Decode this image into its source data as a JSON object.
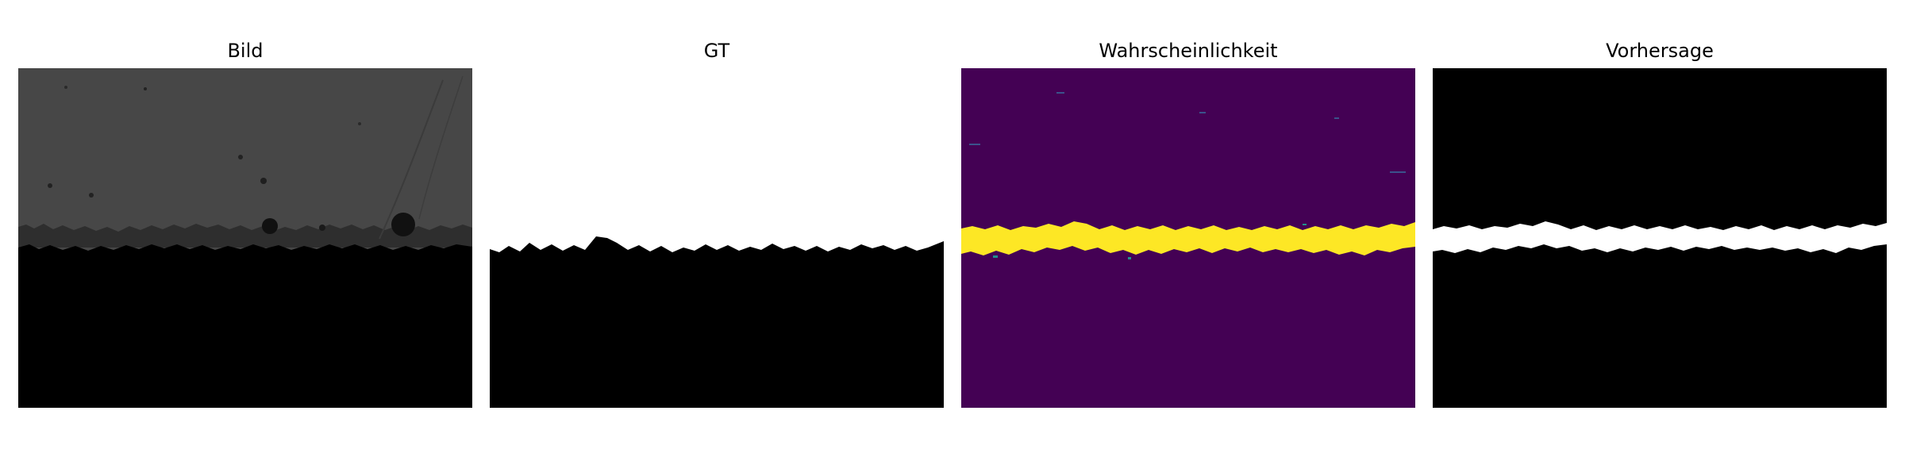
{
  "panels": [
    {
      "title": "Bild"
    },
    {
      "title": "GT"
    },
    {
      "title": "Wahrscheinlichkeit"
    },
    {
      "title": "Vorhersage"
    }
  ],
  "colors": {
    "background": "#ffffff",
    "image_top": "#474747",
    "black": "#000000",
    "white": "#ffffff",
    "prob_low": "#440154",
    "prob_high": "#fde725",
    "prob_mid": "#21918c"
  }
}
